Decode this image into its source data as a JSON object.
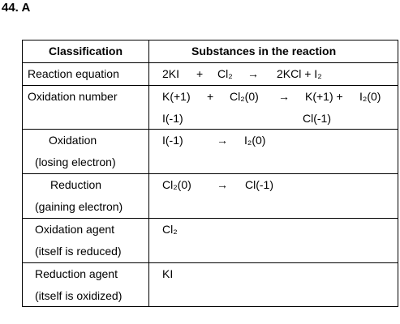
{
  "title": "44. A",
  "table": {
    "header": [
      "Classification",
      "Substances in the reaction"
    ],
    "rows": [
      {
        "label": [
          "Reaction equation"
        ],
        "content": [
          [
            "2KI",
            "+",
            "Cl₂",
            "→",
            "2KCl + I₂"
          ]
        ]
      },
      {
        "label": [
          "Oxidation number"
        ],
        "content": [
          [
            "K(+1)",
            "+",
            "Cl₂(0)",
            "→",
            "K(+1) +",
            "I₂(0)"
          ],
          [
            "I(-1)",
            "Cl(-1)"
          ]
        ]
      },
      {
        "label": [
          "Oxidation",
          "(losing electron)"
        ],
        "content": [
          [
            "I(-1)",
            "→",
            "I₂(0)"
          ]
        ]
      },
      {
        "label": [
          "Reduction",
          "(gaining electron)"
        ],
        "content": [
          [
            "Cl₂(0)",
            "→",
            "Cl(-1)"
          ]
        ]
      },
      {
        "label": [
          "Oxidation agent",
          "(itself is reduced)"
        ],
        "content": [
          [
            "Cl₂"
          ]
        ]
      },
      {
        "label": [
          "Reduction agent",
          "(itself is oxidized)"
        ],
        "content": [
          [
            "KI"
          ]
        ]
      }
    ]
  }
}
